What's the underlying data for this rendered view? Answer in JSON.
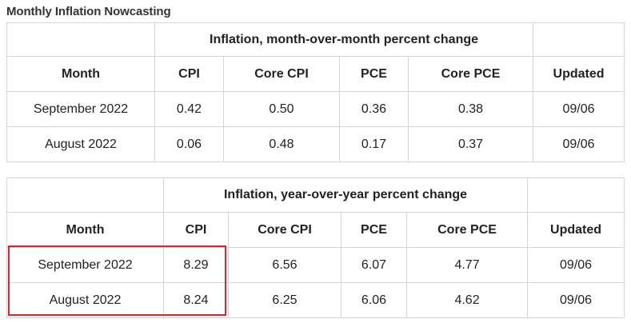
{
  "page": {
    "title": "Monthly Inflation Nowcasting"
  },
  "colors": {
    "highlight": "#d9262c",
    "grid": "#d6d6d6"
  },
  "mom_table": {
    "group_header": "Inflation, month-over-month percent change",
    "columns": [
      "Month",
      "CPI",
      "Core CPI",
      "PCE",
      "Core PCE",
      "Updated"
    ],
    "rows": [
      [
        "September 2022",
        "0.42",
        "0.50",
        "0.36",
        "0.38",
        "09/06"
      ],
      [
        "August 2022",
        "0.06",
        "0.48",
        "0.17",
        "0.37",
        "09/06"
      ]
    ]
  },
  "yoy_table": {
    "group_header": "Inflation, year-over-year percent change",
    "columns": [
      "Month",
      "CPI",
      "Core CPI",
      "PCE",
      "Core PCE",
      "Updated"
    ],
    "rows": [
      [
        "September 2022",
        "8.29",
        "6.56",
        "6.07",
        "4.77",
        "09/06"
      ],
      [
        "August 2022",
        "8.24",
        "6.25",
        "6.06",
        "4.62",
        "09/06"
      ]
    ]
  },
  "highlight": {
    "table": "yoy_table",
    "columns": [
      "Month",
      "CPI"
    ],
    "rows": [
      "September 2022",
      "August 2022"
    ]
  }
}
